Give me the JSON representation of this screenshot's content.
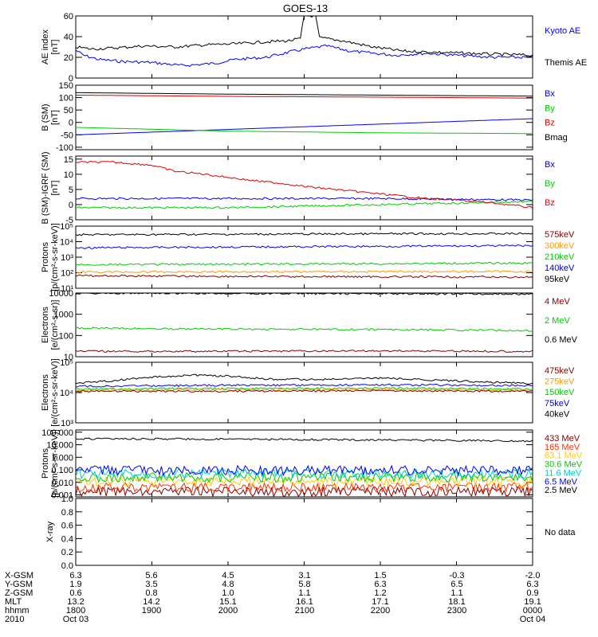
{
  "title": "GOES-13",
  "footer": {
    "rows": [
      {
        "label": "X-GSM",
        "values": [
          "6.3",
          "5.6",
          "4.5",
          "3.1",
          "1.5",
          "-0.3",
          "-2.0"
        ]
      },
      {
        "label": "Y-GSM",
        "values": [
          "1.9",
          "3.5",
          "4.8",
          "5.8",
          "6.3",
          "6.5",
          "6.3"
        ]
      },
      {
        "label": "Z-GSM",
        "values": [
          "0.6",
          "0.8",
          "1.0",
          "1.1",
          "1.2",
          "1.1",
          "0.9"
        ]
      },
      {
        "label": "MLT",
        "values": [
          "13.2",
          "14.2",
          "15.1",
          "16.1",
          "17.1",
          "18.1",
          "19.1"
        ]
      },
      {
        "label": "hhmm",
        "values": [
          "1800",
          "1900",
          "2000",
          "2100",
          "2200",
          "2300",
          "0000"
        ]
      },
      {
        "label": "2010",
        "values": [
          "Oct 03",
          "",
          "",
          "",
          "",
          "",
          "Oct 04"
        ]
      }
    ]
  },
  "chart_data": [
    {
      "type": "line",
      "ylabel": [
        "AE index",
        "[nT]"
      ],
      "ylim": [
        0,
        60
      ],
      "scale": "linear",
      "ticks": [
        0,
        20,
        40,
        60
      ],
      "tick_labels": [
        "0",
        "20",
        "40",
        "60"
      ],
      "x_hours": [
        18,
        24
      ],
      "series": [
        {
          "name": "Kyoto AE",
          "color": "#0000ff",
          "label_color": "#0000ff",
          "x": [
            18.0,
            18.1,
            18.3,
            18.6,
            19.0,
            19.4,
            19.8,
            20.1,
            20.5,
            20.8,
            21.0,
            21.3,
            21.6,
            21.9,
            22.2,
            22.6,
            23.0,
            23.5,
            24.0
          ],
          "values": [
            27,
            22,
            18,
            16,
            15,
            12,
            14,
            18,
            20,
            25,
            28,
            31,
            26,
            24,
            22,
            24,
            22,
            20,
            20
          ]
        },
        {
          "name": "Themis AE",
          "color": "#000000",
          "label_color": "#000000",
          "x": [
            18.0,
            18.2,
            18.5,
            18.9,
            19.3,
            19.7,
            20.1,
            20.5,
            20.8,
            20.95,
            21.0,
            21.15,
            21.2,
            21.5,
            21.9,
            22.3,
            22.7,
            23.1,
            23.5,
            24.0
          ],
          "values": [
            30,
            28,
            29,
            31,
            30,
            32,
            33,
            35,
            36,
            38,
            60,
            60,
            39,
            36,
            30,
            26,
            25,
            24,
            23,
            22
          ]
        }
      ]
    },
    {
      "type": "line",
      "ylabel": [
        "B (SM)",
        "[nT]"
      ],
      "ylim": [
        -110,
        150
      ],
      "scale": "linear",
      "ticks": [
        -100,
        -50,
        0,
        50,
        100,
        150
      ],
      "tick_labels": [
        "-100",
        "-50",
        "0",
        "50",
        "100",
        "150"
      ],
      "x_hours": [
        18,
        24
      ],
      "series": [
        {
          "name": "Bx",
          "color": "#0000ff",
          "label_color": "#0000cc",
          "x": [
            18,
            24
          ],
          "values": [
            -50,
            15
          ]
        },
        {
          "name": "By",
          "color": "#00cc00",
          "label_color": "#00cc00",
          "x": [
            18,
            20,
            22,
            24
          ],
          "values": [
            -20,
            -35,
            -42,
            -45
          ]
        },
        {
          "name": "Bz",
          "color": "#dd0000",
          "label_color": "#dd0000",
          "x": [
            18,
            20,
            22,
            24
          ],
          "values": [
            110,
            105,
            102,
            98
          ]
        },
        {
          "name": "Bmag",
          "color": "#000000",
          "label_color": "#000000",
          "x": [
            18,
            20,
            22,
            24
          ],
          "values": [
            120,
            114,
            110,
            106
          ]
        }
      ]
    },
    {
      "type": "line",
      "ylabel": [
        "B (SM)-IGRF (SM)",
        "[nT]"
      ],
      "ylim": [
        -5,
        16
      ],
      "scale": "linear",
      "ticks": [
        -5,
        0,
        5,
        10,
        15
      ],
      "tick_labels": [
        "-5",
        "0",
        "5",
        "10",
        "15"
      ],
      "x_hours": [
        18,
        24
      ],
      "series": [
        {
          "name": "Bx",
          "color": "#0000ff",
          "label_color": "#0000cc",
          "x": [
            18,
            20,
            22,
            24
          ],
          "values": [
            2,
            2,
            2,
            1.5
          ]
        },
        {
          "name": "By",
          "color": "#00cc00",
          "label_color": "#00cc00",
          "x": [
            18,
            20,
            22,
            24
          ],
          "values": [
            -1,
            -1,
            0,
            1
          ]
        },
        {
          "name": "Bz",
          "color": "#dd0000",
          "label_color": "#dd0000",
          "x": [
            18.0,
            18.5,
            19.0,
            19.3,
            19.7,
            20.0,
            20.3,
            20.7,
            21.0,
            21.4,
            21.8,
            22.2,
            22.6,
            23.0,
            23.5,
            24.0
          ],
          "values": [
            14,
            14,
            13,
            11,
            10,
            9,
            8,
            7,
            6,
            5,
            4,
            3,
            2,
            1.5,
            0.5,
            -1
          ]
        }
      ]
    },
    {
      "type": "line",
      "ylabel": [
        "Protons",
        "[p/(cm²-s-sr-keV)]"
      ],
      "ylim": [
        10,
        100000
      ],
      "scale": "log",
      "ticks": [
        10,
        100,
        1000,
        10000,
        100000
      ],
      "tick_labels": [
        "10¹",
        "10²",
        "10³",
        "10⁴",
        "10⁵"
      ],
      "x_hours": [
        18,
        24
      ],
      "series": [
        {
          "name": "575keV",
          "color": "#000000",
          "label_color": "#800000",
          "x": [
            18,
            20,
            22,
            24
          ],
          "values": [
            28000,
            30000,
            32000,
            33000
          ]
        },
        {
          "name": "300keV",
          "color": "#0000ff",
          "label_color": "#ff9900",
          "x": [
            18,
            20,
            22,
            24
          ],
          "values": [
            4000,
            4500,
            5000,
            5500
          ]
        },
        {
          "name": "210keV",
          "color": "#00cc00",
          "label_color": "#00cc00",
          "x": [
            18,
            20,
            22,
            24
          ],
          "values": [
            330,
            350,
            380,
            420
          ]
        },
        {
          "name": "140keV",
          "color": "#ff9900",
          "label_color": "#0000cc",
          "x": [
            18,
            20,
            22,
            24
          ],
          "values": [
            110,
            115,
            118,
            120
          ]
        },
        {
          "name": "95keV",
          "color": "#800000",
          "label_color": "#000000",
          "x": [
            18,
            20,
            22,
            24
          ],
          "values": [
            65,
            58,
            55,
            52
          ]
        }
      ]
    },
    {
      "type": "line",
      "ylabel": [
        "Electrons",
        "[e/(cm²-s-sr)]"
      ],
      "ylim": [
        10,
        10000
      ],
      "scale": "log",
      "ticks": [
        10,
        100,
        1000,
        10000
      ],
      "tick_labels": [
        "10",
        "100",
        "1000",
        "10000"
      ],
      "x_hours": [
        18,
        24
      ],
      "series": [
        {
          "name": "4 MeV",
          "color": "#800000",
          "label_color": "#800000",
          "x": [
            18,
            20,
            22,
            24
          ],
          "values": [
            18,
            18,
            19,
            18
          ]
        },
        {
          "name": "2 MeV",
          "color": "#00cc00",
          "label_color": "#00cc00",
          "x": [
            18,
            20,
            22,
            24
          ],
          "values": [
            220,
            200,
            190,
            170
          ]
        },
        {
          "name": "0.6 MeV",
          "color": "#000000",
          "label_color": "#000000",
          "x": [
            18,
            20,
            22,
            24
          ],
          "values": [
            9800,
            9600,
            9300,
            9000
          ]
        }
      ]
    },
    {
      "type": "line",
      "ylabel": [
        "Electrons",
        "[e/(cm²-s-sr-keV)]"
      ],
      "ylim": [
        1000,
        100000
      ],
      "scale": "log",
      "ticks": [
        1000,
        10000,
        100000
      ],
      "tick_labels": [
        "10³",
        "10⁴",
        "10⁵"
      ],
      "x_hours": [
        18,
        24
      ],
      "series": [
        {
          "name": "475keV",
          "color": "#000000",
          "label_color": "#800000",
          "x": [
            18.0,
            18.5,
            19.0,
            19.5,
            20.0,
            20.5,
            21.0,
            21.5,
            22.0,
            22.5,
            23.0,
            23.5,
            24.0
          ],
          "values": [
            20000,
            25000,
            32000,
            38000,
            35000,
            28000,
            27000,
            28000,
            30000,
            27000,
            24000,
            22000,
            20000
          ]
        },
        {
          "name": "275keV",
          "color": "#0000ff",
          "label_color": "#ff9900",
          "x": [
            18,
            20,
            22,
            24
          ],
          "values": [
            16000,
            17500,
            18000,
            17000
          ]
        },
        {
          "name": "150keV",
          "color": "#00cc00",
          "label_color": "#00cc00",
          "x": [
            18,
            20,
            22,
            24
          ],
          "values": [
            13000,
            13500,
            14000,
            13000
          ]
        },
        {
          "name": "75keV",
          "color": "#ff9900",
          "label_color": "#0000cc",
          "x": [
            18,
            20,
            22,
            24
          ],
          "values": [
            12000,
            12300,
            12500,
            12000
          ]
        },
        {
          "name": "40keV",
          "color": "#800000",
          "label_color": "#000000",
          "x": [
            18,
            20,
            22,
            24
          ],
          "values": [
            11000,
            11000,
            11500,
            11000
          ]
        }
      ]
    },
    {
      "type": "line",
      "ylabel": [
        "Protons",
        "[p/(cm²-s-sr-keV)]"
      ],
      "ylim": [
        0.0007,
        150
      ],
      "scale": "log",
      "ticks": [
        0.001,
        0.01,
        0.1,
        1,
        10,
        100
      ],
      "tick_labels": [
        "0.001",
        "0.010",
        "0.100",
        "1.000",
        "10.000",
        "100.000"
      ],
      "x_hours": [
        18,
        24
      ],
      "series": [
        {
          "name": "433 MeV",
          "color": "#000000",
          "label_color": "#800000",
          "x": [
            18,
            20,
            22,
            24
          ],
          "values": [
            30,
            28,
            24,
            20
          ]
        },
        {
          "name": "165 MeV",
          "color": "#800000",
          "label_color": "#ff3300",
          "x": [
            18,
            24
          ],
          "values": [
            0.0018,
            0.0018
          ]
        },
        {
          "name": "63.1 MeV",
          "color": "#ff3300",
          "label_color": "#ffcc00",
          "x": [
            18,
            24
          ],
          "values": [
            0.004,
            0.004
          ]
        },
        {
          "name": "30.6 MeV",
          "color": "#ffcc00",
          "label_color": "#00cc00",
          "x": [
            18,
            24
          ],
          "values": [
            0.012,
            0.012
          ]
        },
        {
          "name": "11.6 MeV",
          "color": "#00cc00",
          "label_color": "#00cccc",
          "x": [
            18,
            24
          ],
          "values": [
            0.025,
            0.025
          ]
        },
        {
          "name": "6.5 MeV",
          "color": "#00cccc",
          "label_color": "#0000ff",
          "x": [
            18,
            24
          ],
          "values": [
            0.05,
            0.05
          ]
        },
        {
          "name": "2.5 MeV",
          "color": "#0000ff",
          "label_color": "#000000",
          "x": [
            18,
            24
          ],
          "values": [
            0.09,
            0.09
          ]
        }
      ]
    },
    {
      "type": "line",
      "ylabel": [
        "X-ray"
      ],
      "ylim": [
        0,
        1
      ],
      "scale": "linear",
      "ticks": [
        0,
        0.2,
        0.4,
        0.6,
        0.8,
        1.0
      ],
      "tick_labels": [
        "0.0",
        "0.2",
        "0.4",
        "0.6",
        "0.8",
        "1.0"
      ],
      "x_hours": [
        18,
        24
      ],
      "no_data_text": "No data",
      "series": []
    }
  ]
}
